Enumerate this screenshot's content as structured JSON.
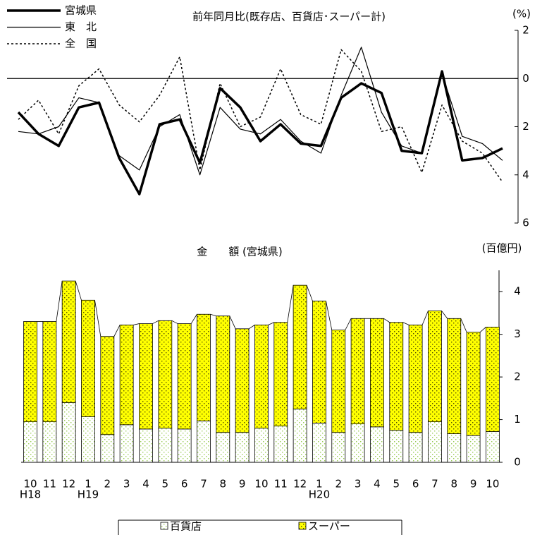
{
  "chart_data": [
    {
      "type": "line",
      "title": "前年同月比(既存店、百貨店･スーパー計)",
      "unit_label": "(%)",
      "ylim": [
        -6,
        2
      ],
      "yticks": [
        2,
        0,
        {
          "value": -2,
          "label": "2"
        },
        {
          "value": -4,
          "label": "4"
        },
        {
          "value": -6,
          "label": "6"
        }
      ],
      "series": [
        {
          "name": "宮城県",
          "color": "#000000",
          "style": "thick",
          "values": [
            -1.4,
            -2.3,
            -2.8,
            -1.2,
            -1.0,
            -3.3,
            -4.8,
            -1.9,
            -1.7,
            -3.5,
            -0.4,
            -1.2,
            -2.6,
            -1.9,
            -2.7,
            -2.8,
            -0.8,
            -0.2,
            -0.6,
            -3.0,
            -3.1,
            0.3,
            -3.4,
            -3.3,
            -2.9
          ]
        },
        {
          "name": "東　北",
          "color": "#000000",
          "style": "thin",
          "values": [
            -2.2,
            -2.3,
            -2.0,
            -0.8,
            -1.0,
            -3.2,
            -3.8,
            -2.0,
            -1.5,
            -4.0,
            -1.2,
            -2.1,
            -2.3,
            -1.7,
            -2.6,
            -3.1,
            -0.7,
            1.3,
            -1.4,
            -2.8,
            -3.1,
            0.2,
            -2.4,
            -2.7,
            -3.4
          ]
        },
        {
          "name": "全　国",
          "color": "#000000",
          "style": "dotted",
          "values": [
            -1.7,
            -0.9,
            -2.3,
            -0.3,
            0.4,
            -1.1,
            -1.8,
            -0.7,
            0.9,
            -3.8,
            -0.2,
            -2.0,
            -1.6,
            0.4,
            -1.5,
            -1.9,
            1.2,
            0.3,
            -2.2,
            -2.0,
            -3.9,
            -1.1,
            -2.6,
            -3.1,
            -4.3
          ]
        }
      ]
    },
    {
      "type": "stacked_bar",
      "title": "金　　額 (宮城県)",
      "unit_label": "(百億円)",
      "categories": [
        "10",
        "11",
        "12",
        "1",
        "2",
        "3",
        "4",
        "5",
        "6",
        "7",
        "8",
        "9",
        "10",
        "11",
        "12",
        "1",
        "2",
        "3",
        "4",
        "5",
        "6",
        "7",
        "8",
        "9",
        "10"
      ],
      "category_years": [
        "H18",
        null,
        null,
        "H19",
        null,
        null,
        null,
        null,
        null,
        null,
        null,
        null,
        null,
        null,
        null,
        "H20",
        null,
        null,
        null,
        null,
        null,
        null,
        null,
        null,
        null
      ],
      "ylim": [
        0,
        4.5
      ],
      "yticks": [
        0,
        1,
        2,
        3,
        4
      ],
      "series": [
        {
          "name": "百貨店",
          "color": "#ffffff",
          "dot_color": "#99cc55",
          "values": [
            0.95,
            0.95,
            1.4,
            1.07,
            0.65,
            0.88,
            0.78,
            0.8,
            0.78,
            0.97,
            0.7,
            0.7,
            0.8,
            0.85,
            1.25,
            0.92,
            0.7,
            0.9,
            0.83,
            0.75,
            0.7,
            0.95,
            0.67,
            0.63,
            0.72
          ]
        },
        {
          "name": "スーパー",
          "color": "#ffff00",
          "dot_color": "#555500",
          "values": [
            2.35,
            2.35,
            2.85,
            2.73,
            2.3,
            2.34,
            2.47,
            2.52,
            2.47,
            2.5,
            2.73,
            2.43,
            2.42,
            2.43,
            2.9,
            2.86,
            2.4,
            2.47,
            2.54,
            2.53,
            2.52,
            2.6,
            2.7,
            2.42,
            2.45
          ]
        }
      ]
    }
  ]
}
